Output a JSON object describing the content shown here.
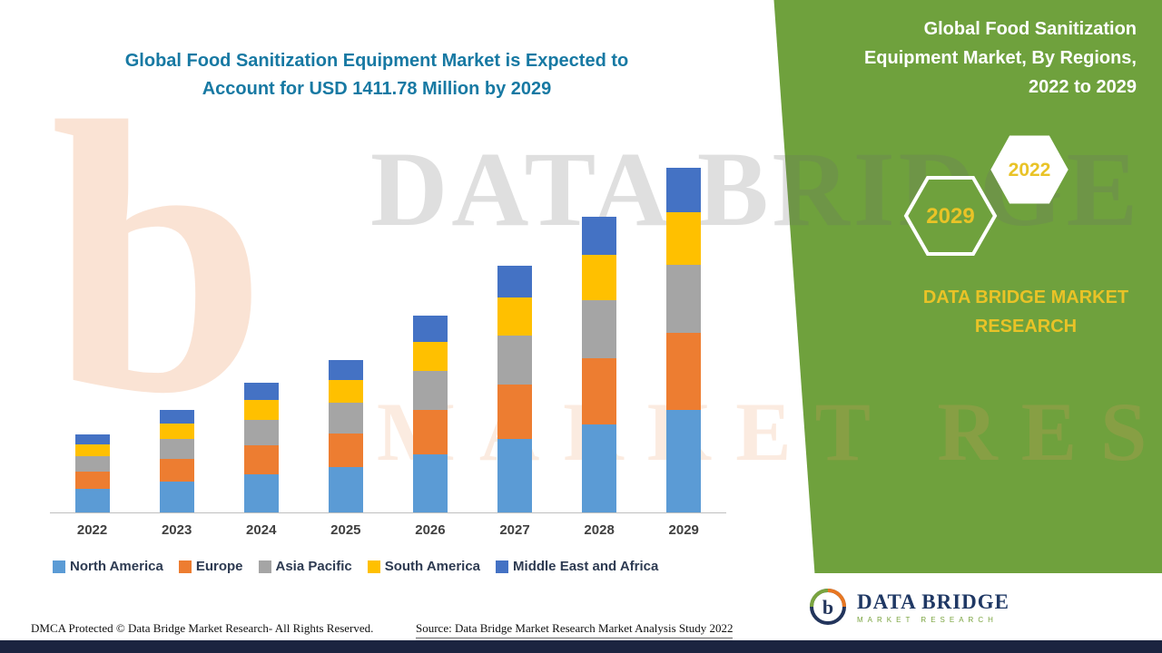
{
  "title": {
    "line1": "Global Food Sanitization Equipment Market is Expected to",
    "line2": "Account for USD 1411.78 Million by 2029"
  },
  "panel": {
    "heading_line1": "Global Food Sanitization",
    "heading_line2": "Equipment Market, By Regions,",
    "heading_line3": "2022 to 2029",
    "hex_back_label": "2029",
    "hex_front_label": "2022",
    "brand_line1": "DATA BRIDGE MARKET",
    "brand_line2": "RESEARCH",
    "panel_color": "#6FA13D",
    "accent_yellow": "#E9C327"
  },
  "watermark": {
    "glyph": "b",
    "line1": "DATA BRIDGE",
    "line2": "MARKET RESEARCH"
  },
  "footer": {
    "dmca": "DMCA Protected © Data Bridge Market Research- All Rights Reserved.",
    "source": "Source: Data Bridge Market Research Market Analysis Study 2022",
    "logo_title": "DATA BRIDGE",
    "logo_subtitle": "MARKET RESEARCH"
  },
  "chart_data": {
    "type": "bar",
    "stacked": true,
    "title": "Global Food Sanitization Equipment Market is Expected to Account for USD 1411.78 Million by 2029",
    "unit": "USD Million",
    "categories": [
      "2022",
      "2023",
      "2024",
      "2025",
      "2026",
      "2027",
      "2028",
      "2029"
    ],
    "series": [
      {
        "name": "North America",
        "color": "#5B9BD5",
        "values": [
          95,
          125,
          157,
          186,
          239,
          300,
          360,
          420
        ]
      },
      {
        "name": "Europe",
        "color": "#ED7D31",
        "values": [
          71,
          94,
          118,
          139,
          180,
          225,
          270,
          315
        ]
      },
      {
        "name": "Asia Pacific",
        "color": "#A5A5A5",
        "values": [
          63,
          83,
          105,
          124,
          159,
          200,
          240,
          280
        ]
      },
      {
        "name": "South America",
        "color": "#FFC000",
        "values": [
          49,
          64,
          81,
          95,
          122,
          154,
          184,
          215
        ]
      },
      {
        "name": "Middle East and Africa",
        "color": "#4472C4",
        "values": [
          42,
          54,
          69,
          81,
          105,
          131,
          156,
          181.78
        ]
      }
    ],
    "totals": [
      320,
      420,
      530,
      625,
      805,
      1010,
      1210,
      1411.78
    ],
    "ylim": [
      0,
      1450
    ],
    "grid": false,
    "legend_position": "bottom"
  }
}
